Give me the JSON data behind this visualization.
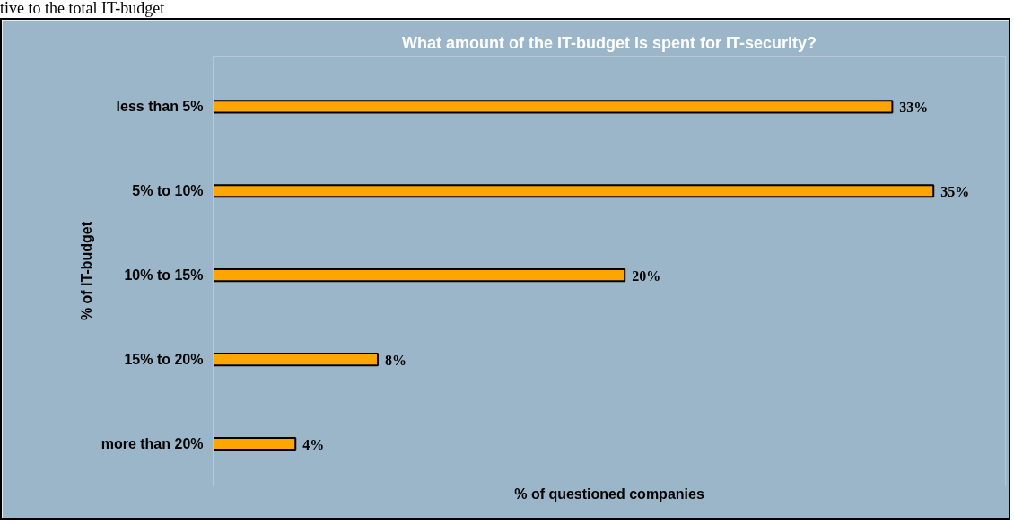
{
  "chart_data": {
    "type": "bar",
    "orientation": "horizontal",
    "title": "What amount of the IT-budget is spent for IT-security?",
    "categories": [
      "less than 5%",
      "5% to 10%",
      "10% to 15%",
      "15% to 20%",
      "more than 20%"
    ],
    "values": [
      33,
      35,
      20,
      8,
      4
    ],
    "color": "#ffa500",
    "data_labels": true,
    "value_labels": [
      "33%",
      "35%",
      "20%",
      "8%",
      "4%"
    ],
    "xlim": [
      0,
      38.5
    ],
    "tick_labels": "y",
    "xlabel": "% of questioned companies",
    "ylabel": "% of IT-budget",
    "annotations": [
      "tive to the total IT-budget"
    ]
  }
}
